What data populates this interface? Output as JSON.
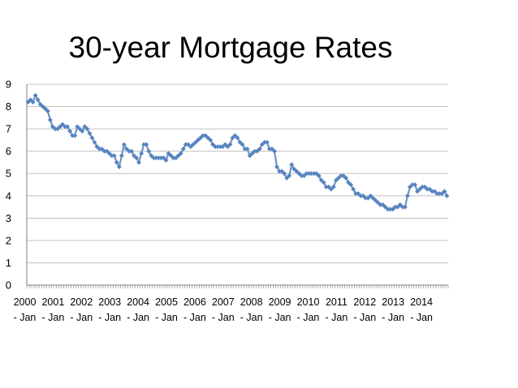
{
  "chart_data": {
    "type": "line",
    "title": "30-year Mortgage Rates",
    "xlabel": "",
    "ylabel": "",
    "ylim": [
      0,
      9
    ],
    "yticks": [
      "0",
      "1",
      "2",
      "3",
      "4",
      "5",
      "6",
      "7",
      "8",
      "9"
    ],
    "xticks": [
      {
        "year": "2000",
        "sub": "- Jan"
      },
      {
        "year": "2001",
        "sub": "- Jan"
      },
      {
        "year": "2002",
        "sub": "- Jan"
      },
      {
        "year": "2003",
        "sub": "- Jan"
      },
      {
        "year": "2004",
        "sub": "- Jan"
      },
      {
        "year": "2005",
        "sub": "- Jan"
      },
      {
        "year": "2006",
        "sub": "- Jan"
      },
      {
        "year": "2007",
        "sub": "- Jan"
      },
      {
        "year": "2008",
        "sub": "- Jan"
      },
      {
        "year": "2009",
        "sub": "- Jan"
      },
      {
        "year": "2010",
        "sub": "- Jan"
      },
      {
        "year": "2011",
        "sub": "- Jan"
      },
      {
        "year": "2012",
        "sub": "- Jan"
      },
      {
        "year": "2013",
        "sub": "- Jan"
      },
      {
        "year": "2014",
        "sub": "- Jan"
      }
    ],
    "grid": true,
    "legend": "none",
    "colors": {
      "line": "#6E93C7",
      "marker": "#4F81BD",
      "grid": "#C0C0C0",
      "axis": "#808080"
    },
    "series": [
      {
        "values": [
          8.2,
          8.3,
          8.2,
          8.5,
          8.3,
          8.1,
          8.0,
          7.9,
          7.8,
          7.4,
          7.1,
          7.0,
          7.0,
          7.1,
          7.2,
          7.1,
          7.1,
          6.9,
          6.7,
          6.7,
          7.1,
          7.0,
          6.9,
          7.1,
          7.0,
          6.8,
          6.6,
          6.4,
          6.2,
          6.1,
          6.1,
          6.0,
          6.0,
          5.9,
          5.8,
          5.8,
          5.5,
          5.3,
          5.8,
          6.3,
          6.1,
          6.0,
          6.0,
          5.8,
          5.7,
          5.5,
          5.9,
          6.3,
          6.3,
          6.0,
          5.8,
          5.7,
          5.7,
          5.7,
          5.7,
          5.7,
          5.6,
          5.9,
          5.8,
          5.7,
          5.7,
          5.8,
          5.9,
          6.1,
          6.3,
          6.3,
          6.2,
          6.3,
          6.4,
          6.5,
          6.6,
          6.7,
          6.7,
          6.6,
          6.5,
          6.3,
          6.2,
          6.2,
          6.2,
          6.2,
          6.3,
          6.2,
          6.3,
          6.6,
          6.7,
          6.6,
          6.4,
          6.3,
          6.1,
          6.1,
          5.8,
          5.9,
          6.0,
          6.0,
          6.1,
          6.3,
          6.4,
          6.4,
          6.1,
          6.1,
          6.0,
          5.3,
          5.1,
          5.1,
          5.0,
          4.8,
          4.9,
          5.4,
          5.2,
          5.1,
          5.0,
          4.9,
          4.9,
          5.0,
          5.0,
          5.0,
          5.0,
          5.0,
          4.9,
          4.7,
          4.6,
          4.4,
          4.4,
          4.3,
          4.4,
          4.7,
          4.8,
          4.9,
          4.9,
          4.8,
          4.6,
          4.5,
          4.3,
          4.1,
          4.1,
          4.0,
          4.0,
          3.9,
          3.9,
          4.0,
          3.9,
          3.8,
          3.7,
          3.6,
          3.6,
          3.5,
          3.4,
          3.4,
          3.4,
          3.5,
          3.5,
          3.6,
          3.5,
          3.5,
          4.0,
          4.4,
          4.5,
          4.5,
          4.2,
          4.3,
          4.4,
          4.4,
          4.3,
          4.3,
          4.2,
          4.2,
          4.1,
          4.1,
          4.1,
          4.2,
          4.0
        ]
      }
    ]
  }
}
